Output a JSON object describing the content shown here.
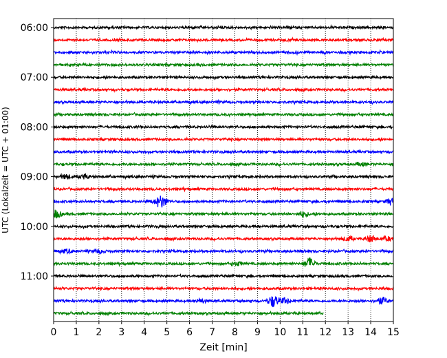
{
  "chart_data": {
    "type": "line",
    "title": "",
    "xlabel": "Zeit  [min]",
    "ylabel": "UTC (Lokalzeit = UTC + 01:00)",
    "xlim": [
      0,
      15
    ],
    "x_ticks": [
      0,
      1,
      2,
      3,
      4,
      5,
      6,
      7,
      8,
      9,
      10,
      11,
      12,
      13,
      14,
      15
    ],
    "x_tick_labels": [
      "0",
      "1",
      "2",
      "3",
      "4",
      "5",
      "6",
      "7",
      "8",
      "9",
      "10",
      "11",
      "12",
      "13",
      "14",
      "15"
    ],
    "y_tick_labels": [
      "06:00",
      "07:00",
      "08:00",
      "09:00",
      "10:00",
      "11:00"
    ],
    "y_tick_rows": [
      0,
      4,
      8,
      12,
      16,
      20
    ],
    "grid": "vertical dotted",
    "colors": {
      "black": "#000000",
      "red": "#ff0000",
      "blue": "#0000ff",
      "green": "#008000"
    },
    "traces": [
      {
        "start": "06:00",
        "color": "black",
        "x_end": 15
      },
      {
        "start": "06:15",
        "color": "red",
        "x_end": 15
      },
      {
        "start": "06:30",
        "color": "blue",
        "x_end": 15
      },
      {
        "start": "06:45",
        "color": "green",
        "x_end": 15
      },
      {
        "start": "07:00",
        "color": "black",
        "x_end": 15
      },
      {
        "start": "07:15",
        "color": "red",
        "x_end": 15
      },
      {
        "start": "07:30",
        "color": "blue",
        "x_end": 15
      },
      {
        "start": "07:45",
        "color": "green",
        "x_end": 15
      },
      {
        "start": "08:00",
        "color": "black",
        "x_end": 15
      },
      {
        "start": "08:15",
        "color": "red",
        "x_end": 15
      },
      {
        "start": "08:30",
        "color": "blue",
        "x_end": 15
      },
      {
        "start": "08:45",
        "color": "green",
        "x_end": 15,
        "bursts": [
          [
            13.6,
            0.8
          ]
        ]
      },
      {
        "start": "09:00",
        "color": "black",
        "x_end": 15,
        "bursts": [
          [
            0.55,
            1.2
          ],
          [
            1.35,
            1.0
          ]
        ]
      },
      {
        "start": "09:15",
        "color": "red",
        "x_end": 15
      },
      {
        "start": "09:30",
        "color": "blue",
        "x_end": 15,
        "bursts": [
          [
            4.8,
            2.5
          ],
          [
            4.6,
            1.5
          ],
          [
            14.9,
            1.6
          ]
        ]
      },
      {
        "start": "09:45",
        "color": "green",
        "x_end": 15,
        "bursts": [
          [
            0.1,
            2.2
          ],
          [
            11.0,
            1.5
          ]
        ]
      },
      {
        "start": "10:00",
        "color": "black",
        "x_end": 15
      },
      {
        "start": "10:15",
        "color": "red",
        "x_end": 15,
        "bursts": [
          [
            13.0,
            1.2
          ],
          [
            14.0,
            1.8
          ],
          [
            14.7,
            1.0
          ]
        ]
      },
      {
        "start": "10:30",
        "color": "blue",
        "x_end": 15,
        "bursts": [
          [
            0.6,
            1.0
          ],
          [
            2.0,
            1.0
          ]
        ]
      },
      {
        "start": "10:45",
        "color": "green",
        "x_end": 15,
        "bursts": [
          [
            11.3,
            3.0
          ],
          [
            8.1,
            1.0
          ]
        ]
      },
      {
        "start": "11:00",
        "color": "black",
        "x_end": 15
      },
      {
        "start": "11:15",
        "color": "red",
        "x_end": 15
      },
      {
        "start": "11:30",
        "color": "blue",
        "x_end": 15,
        "bursts": [
          [
            9.7,
            3.2
          ],
          [
            10.2,
            1.5
          ],
          [
            14.5,
            2.0
          ],
          [
            6.5,
            1.0
          ]
        ]
      },
      {
        "start": "11:45",
        "color": "green",
        "x_end": 11.9
      }
    ]
  }
}
